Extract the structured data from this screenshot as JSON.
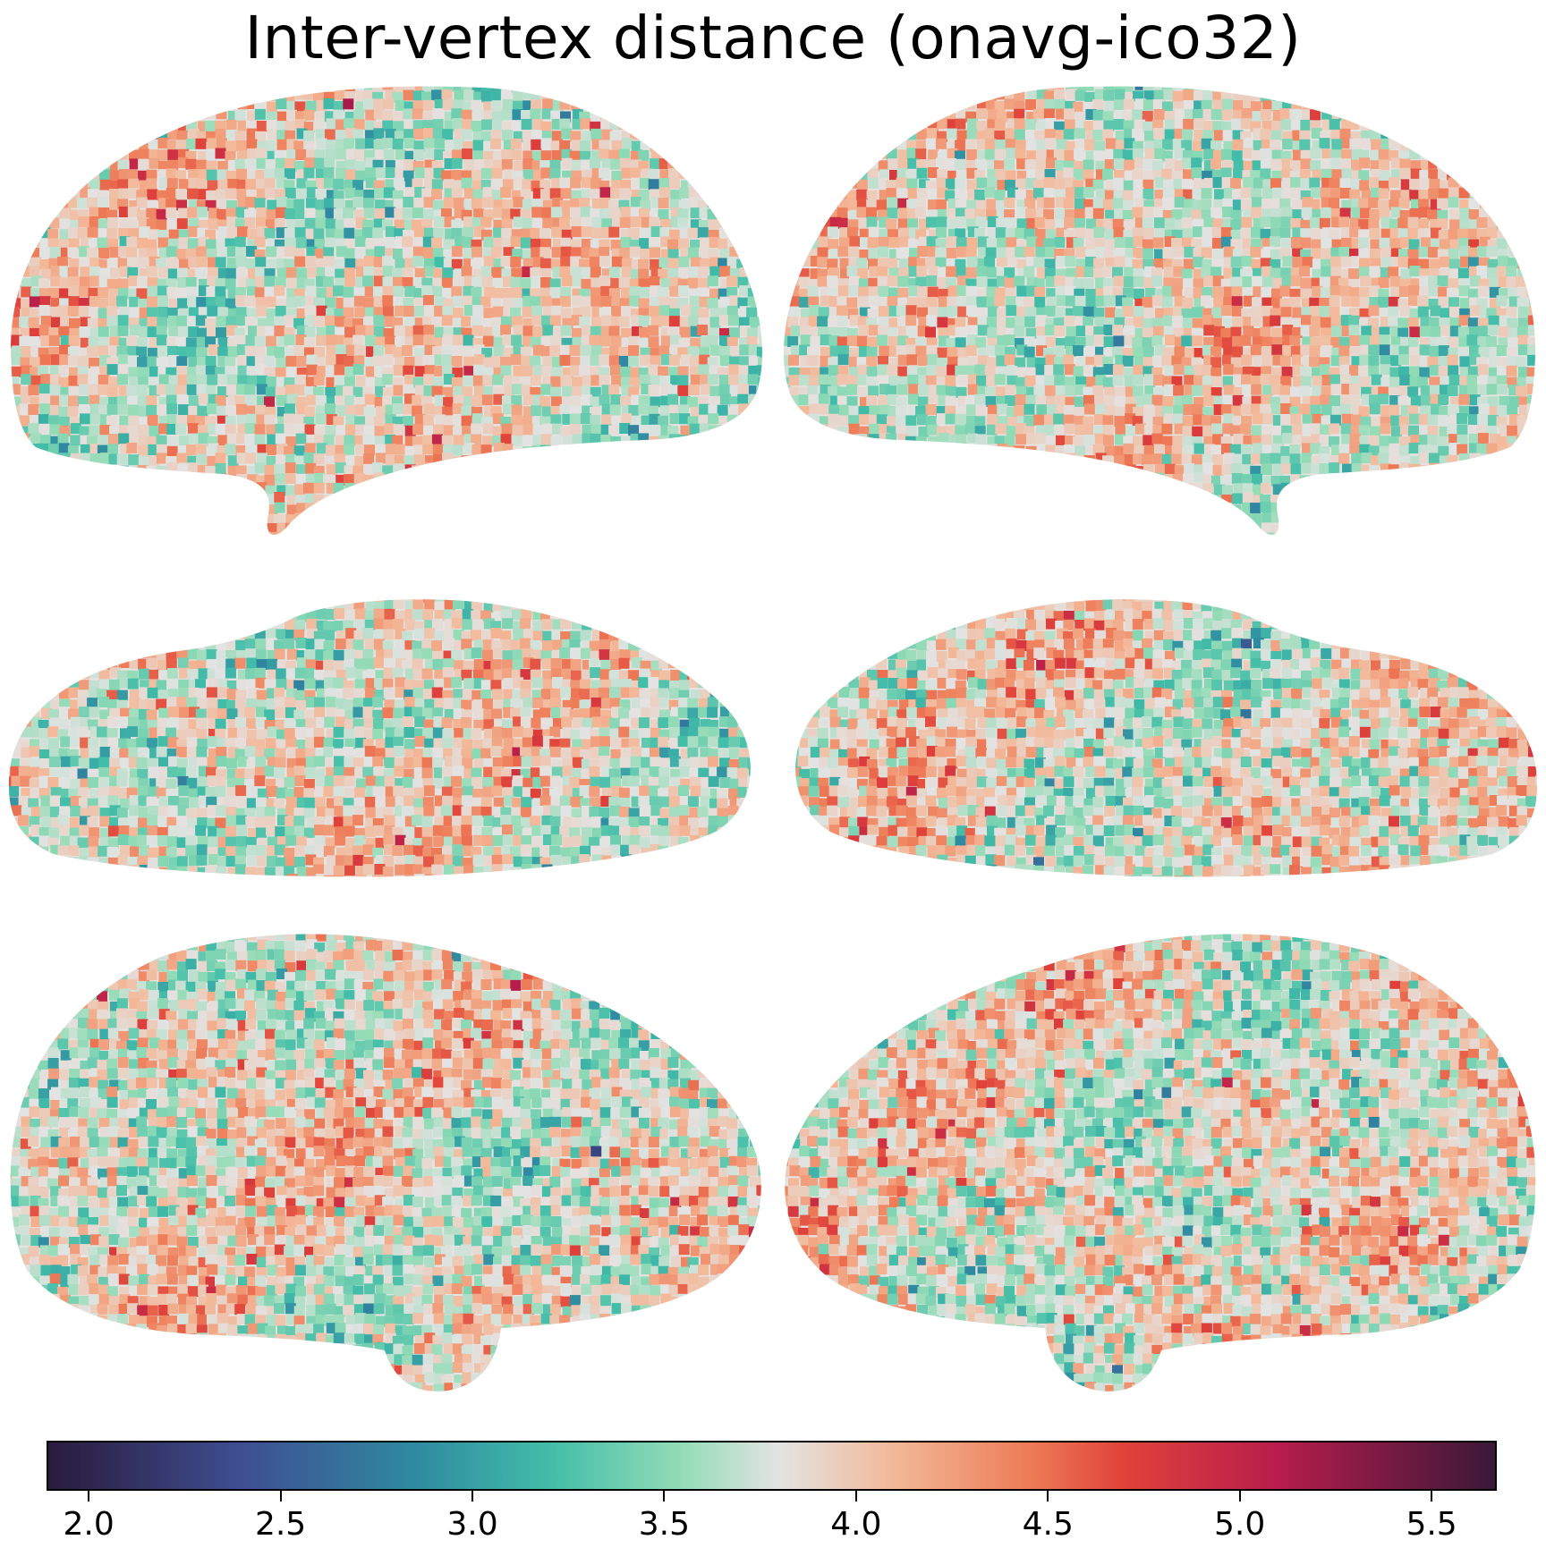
{
  "title": "Inter-vertex distance (onavg-ico32)",
  "colormap": {
    "name": "diverging-teal-to-coral",
    "vmin": 1.89,
    "vmax": 5.67,
    "stops": [
      {
        "value": 1.89,
        "color": "#2a1b3d"
      },
      {
        "value": 2.4,
        "color": "#3e4f92"
      },
      {
        "value": 2.85,
        "color": "#2f8aa1"
      },
      {
        "value": 3.2,
        "color": "#42bda8"
      },
      {
        "value": 3.55,
        "color": "#95dcb7"
      },
      {
        "value": 3.8,
        "color": "#e3e3e3"
      },
      {
        "value": 4.1,
        "color": "#f3b898"
      },
      {
        "value": 4.45,
        "color": "#ee7c58"
      },
      {
        "value": 4.7,
        "color": "#e0423a"
      },
      {
        "value": 5.1,
        "color": "#b81d4c"
      },
      {
        "value": 5.67,
        "color": "#3a1838"
      }
    ]
  },
  "colorbar_ticks": [
    {
      "value": 2.0,
      "label": "2.0"
    },
    {
      "value": 2.5,
      "label": "2.5"
    },
    {
      "value": 3.0,
      "label": "3.0"
    },
    {
      "value": 3.5,
      "label": "3.5"
    },
    {
      "value": 4.0,
      "label": "4.0"
    },
    {
      "value": 4.5,
      "label": "4.5"
    },
    {
      "value": 5.0,
      "label": "5.0"
    },
    {
      "value": 5.5,
      "label": "5.5"
    }
  ],
  "views": [
    {
      "name": "left-hemisphere-lateral",
      "hemisphere": "left",
      "view": "lateral"
    },
    {
      "name": "right-hemisphere-lateral",
      "hemisphere": "right",
      "view": "lateral"
    },
    {
      "name": "left-hemisphere-ventral",
      "hemisphere": "left",
      "view": "ventral"
    },
    {
      "name": "right-hemisphere-ventral",
      "hemisphere": "right",
      "view": "ventral"
    },
    {
      "name": "left-hemisphere-medial",
      "hemisphere": "left",
      "view": "medial"
    },
    {
      "name": "right-hemisphere-medial",
      "hemisphere": "right",
      "view": "medial"
    }
  ]
}
